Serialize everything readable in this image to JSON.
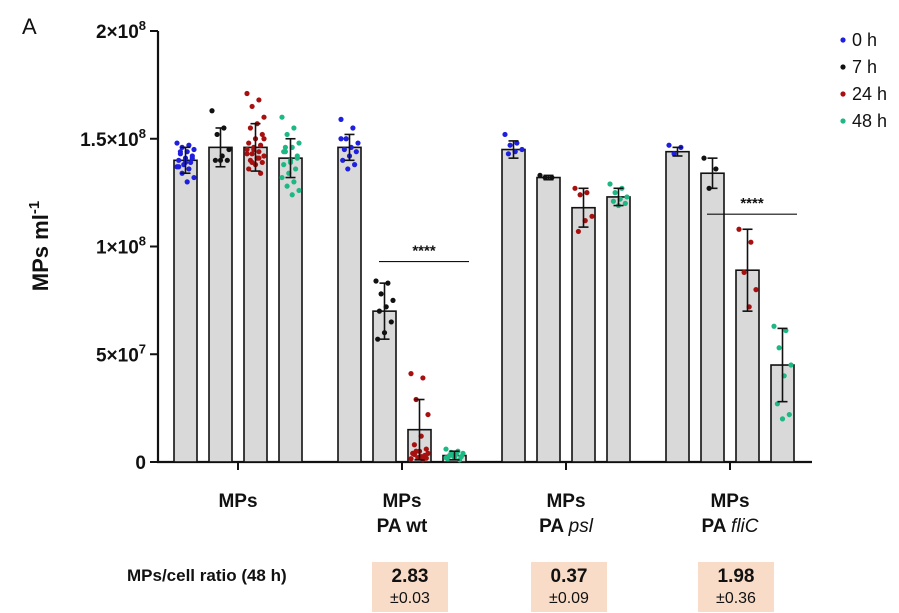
{
  "panel_label": "A",
  "chart_data": {
    "type": "bar",
    "ylabel": "MPs ml",
    "ylabel_sup": "-1",
    "ylim": [
      0,
      200000000
    ],
    "yticks": [
      {
        "value": 0,
        "label": "0"
      },
      {
        "value": 50000000,
        "label": "5×10",
        "sup": "7"
      },
      {
        "value": 100000000,
        "label": "1×10",
        "sup": "8"
      },
      {
        "value": 150000000,
        "label": "1.5×10",
        "sup": "8"
      },
      {
        "value": 200000000,
        "label": "2×10",
        "sup": "8"
      }
    ],
    "groups": [
      {
        "name": "MPs",
        "line2": "",
        "line2_italic": ""
      },
      {
        "name": "MPs",
        "line2": "PA wt",
        "line2_italic": ""
      },
      {
        "name": "MPs",
        "line2": "PA ",
        "line2_italic": "psl"
      },
      {
        "name": "MPs",
        "line2": "PA ",
        "line2_italic": "fliC"
      }
    ],
    "series": [
      {
        "name": "0 h",
        "color": "#1f1fe0",
        "values": [
          140000000,
          146000000,
          145000000,
          144000000
        ],
        "errors": [
          6000000,
          6000000,
          4000000,
          2000000
        ]
      },
      {
        "name": "7 h",
        "color": "#111111",
        "values": [
          146000000,
          70000000,
          132000000,
          134000000
        ],
        "errors": [
          9000000,
          13000000,
          1000000,
          7000000
        ]
      },
      {
        "name": "24 h",
        "color": "#a81010",
        "values": [
          146000000,
          15000000,
          118000000,
          89000000
        ],
        "errors": [
          11000000,
          14000000,
          9000000,
          19000000
        ]
      },
      {
        "name": "48 h",
        "color": "#1db884",
        "values": [
          141000000,
          3000000,
          123000000,
          45000000
        ],
        "errors": [
          9000000,
          2000000,
          4000000,
          17000000
        ]
      }
    ],
    "points": [
      [
        [
          148000000,
          147000000,
          146000000,
          145000000,
          144000000,
          143000000,
          142000000,
          141000000,
          140000000,
          139000000,
          138000000,
          137000000,
          136000000,
          134000000,
          132000000,
          130000000,
          144000000,
          141000000,
          139000000,
          137000000
        ],
        [
          163000000,
          155000000,
          152000000,
          145000000,
          142000000,
          140000000,
          140000000,
          140000000
        ],
        [
          171000000,
          168000000,
          165000000,
          160000000,
          157000000,
          155000000,
          152000000,
          150000000,
          148000000,
          147000000,
          146000000,
          145000000,
          144000000,
          143000000,
          142000000,
          141000000,
          140000000,
          139000000,
          138000000,
          136000000,
          134000000,
          145000000,
          143000000,
          141000000,
          139000000,
          150000000
        ],
        [
          160000000,
          155000000,
          152000000,
          148000000,
          146000000,
          144000000,
          142000000,
          140000000,
          138000000,
          136000000,
          134000000,
          132000000,
          130000000,
          128000000,
          126000000,
          124000000,
          146000000,
          141000000,
          139000000,
          144000000
        ]
      ],
      [
        [
          159000000,
          155000000,
          150000000,
          148000000,
          146000000,
          145000000,
          144000000,
          142000000,
          140000000,
          138000000,
          136000000,
          150000000
        ],
        [
          84000000,
          83000000,
          78000000,
          75000000,
          72000000,
          70000000,
          65000000,
          60000000,
          57000000
        ],
        [
          41000000,
          39000000,
          29000000,
          22000000,
          12000000,
          8000000,
          6000000,
          5000000,
          4000000,
          3000000,
          2000000,
          1500000,
          1000000,
          5000000,
          4000000,
          2500000,
          3500000,
          1800000,
          2200000
        ],
        [
          6000000,
          5000000,
          4500000,
          4000000,
          3500000,
          3000000,
          2500000,
          2000000,
          1500000,
          1000000,
          3000000,
          2000000
        ]
      ],
      [
        [
          152000000,
          148000000,
          147000000,
          145000000,
          144000000,
          143000000
        ],
        [
          133000000,
          132000000,
          132000000
        ],
        [
          127000000,
          125000000,
          124000000,
          114000000,
          112000000,
          107000000
        ],
        [
          129000000,
          127000000,
          125000000,
          123000000,
          122000000,
          121000000,
          120000000,
          119000000
        ]
      ],
      [
        [
          147000000,
          146000000,
          143000000
        ],
        [
          141000000,
          136000000,
          127000000
        ],
        [
          108000000,
          102000000,
          88000000,
          80000000,
          72000000
        ],
        [
          63000000,
          61000000,
          53000000,
          45000000,
          40000000,
          27000000,
          22000000,
          20000000
        ]
      ]
    ],
    "significance": [
      {
        "group": 1,
        "label": "****",
        "value": 93000000
      },
      {
        "group": 3,
        "label": "****",
        "value": 115000000
      }
    ],
    "legend_position": "top-right",
    "grid": false
  },
  "ratio": {
    "title": "MPs/cell ratio (48 h)",
    "boxes": [
      {
        "value": "2.83",
        "error": "±0.03"
      },
      {
        "value": "0.37",
        "error": "±0.09"
      },
      {
        "value": "1.98",
        "error": "±0.36"
      }
    ]
  }
}
